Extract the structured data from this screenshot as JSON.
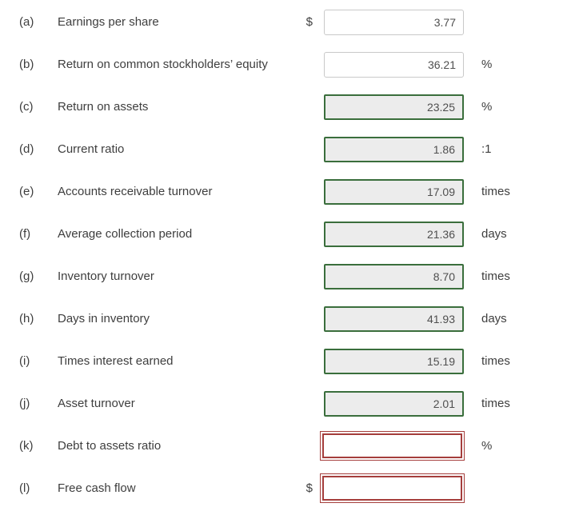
{
  "colors": {
    "background": "#ffffff",
    "text": "#3e3e3e",
    "input_text": "#4f4f4f",
    "neutral_border": "#c9c9c9",
    "correct_border": "#3a6e3c",
    "correct_fill": "#ececec",
    "error_border": "#a53e3c"
  },
  "rows": [
    {
      "letter": "(a)",
      "label": "Earnings per share",
      "prefix": "$",
      "value": "3.77",
      "suffix": "",
      "state": "default"
    },
    {
      "letter": "(b)",
      "label": "Return on common stockholders’ equity",
      "prefix": "",
      "value": "36.21",
      "suffix": "%",
      "state": "default"
    },
    {
      "letter": "(c)",
      "label": "Return on assets",
      "prefix": "",
      "value": "23.25",
      "suffix": "%",
      "state": "correct"
    },
    {
      "letter": "(d)",
      "label": "Current ratio",
      "prefix": "",
      "value": "1.86",
      "suffix": ":1",
      "state": "correct"
    },
    {
      "letter": "(e)",
      "label": "Accounts receivable turnover",
      "prefix": "",
      "value": "17.09",
      "suffix": "times",
      "state": "correct"
    },
    {
      "letter": "(f)",
      "label": "Average collection period",
      "prefix": "",
      "value": "21.36",
      "suffix": "days",
      "state": "correct"
    },
    {
      "letter": "(g)",
      "label": "Inventory turnover",
      "prefix": "",
      "value": "8.70",
      "suffix": "times",
      "state": "correct"
    },
    {
      "letter": "(h)",
      "label": "Days in inventory",
      "prefix": "",
      "value": "41.93",
      "suffix": "days",
      "state": "correct"
    },
    {
      "letter": "(i)",
      "label": "Times interest earned",
      "prefix": "",
      "value": "15.19",
      "suffix": "times",
      "state": "correct"
    },
    {
      "letter": "(j)",
      "label": "Asset turnover",
      "prefix": "",
      "value": "2.01",
      "suffix": "times",
      "state": "correct"
    },
    {
      "letter": "(k)",
      "label": "Debt to assets ratio",
      "prefix": "",
      "value": "",
      "suffix": "%",
      "state": "error"
    },
    {
      "letter": "(l)",
      "label": "Free cash flow",
      "prefix": "$",
      "value": "",
      "suffix": "",
      "state": "error"
    }
  ]
}
